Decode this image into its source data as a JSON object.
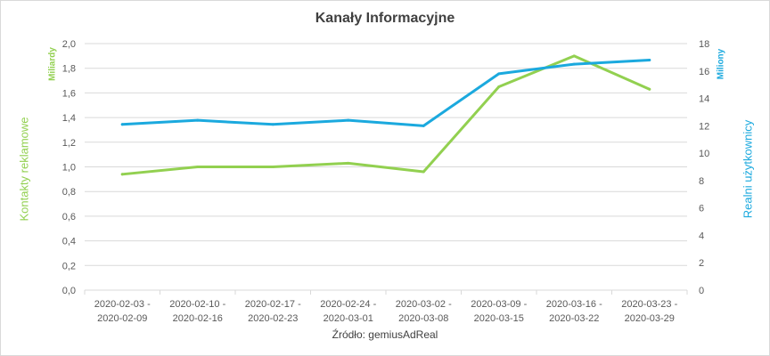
{
  "colors": {
    "series_green": "#92d050",
    "series_blue": "#1ba9de",
    "grid": "#d9d9d9",
    "text": "#595959"
  },
  "chart_data": {
    "type": "line",
    "title": "Kanały Informacyjne",
    "source": "Źródło: gemiusAdReal",
    "categories": [
      [
        "2020-02-03 -",
        "2020-02-09"
      ],
      [
        "2020-02-10 -",
        "2020-02-16"
      ],
      [
        "2020-02-17 -",
        "2020-02-23"
      ],
      [
        "2020-02-24 -",
        "2020-03-01"
      ],
      [
        "2020-03-02 -",
        "2020-03-08"
      ],
      [
        "2020-03-09 -",
        "2020-03-15"
      ],
      [
        "2020-03-16 -",
        "2020-03-22"
      ],
      [
        "2020-03-23 -",
        "2020-03-29"
      ]
    ],
    "y_left": {
      "label": "Kontakty reklamowe",
      "unit": "Miliardy",
      "range": [
        0,
        2
      ],
      "ticks": [
        "0,0",
        "0,2",
        "0,4",
        "0,6",
        "0,8",
        "1,0",
        "1,2",
        "1,4",
        "1,6",
        "1,8",
        "2,0"
      ]
    },
    "y_right": {
      "label": "Realni użytkownicy",
      "unit": "Miliony",
      "range": [
        0,
        18
      ],
      "ticks": [
        "0",
        "2",
        "4",
        "6",
        "8",
        "10",
        "12",
        "14",
        "16",
        "18"
      ]
    },
    "grid": true,
    "legend": "none",
    "series": [
      {
        "axis": "left",
        "color": "#92d050",
        "values": [
          0.94,
          1.0,
          1.0,
          1.03,
          0.96,
          1.65,
          1.9,
          1.63
        ]
      },
      {
        "axis": "right",
        "color": "#1ba9de",
        "values": [
          12.1,
          12.4,
          12.1,
          12.4,
          12.0,
          15.8,
          16.5,
          16.8
        ]
      }
    ]
  }
}
